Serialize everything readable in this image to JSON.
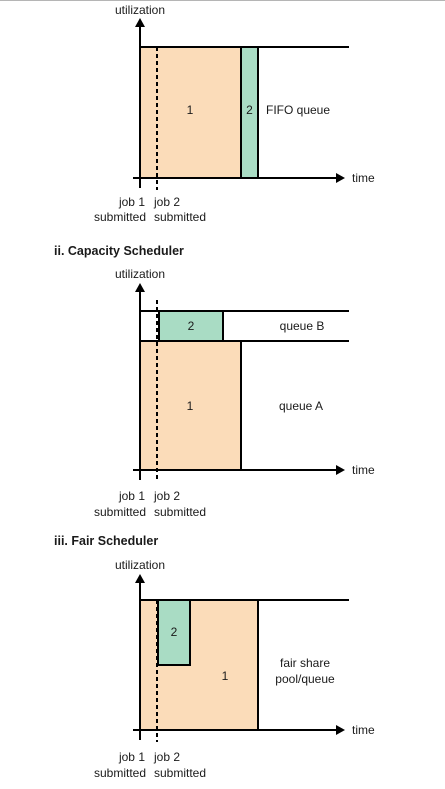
{
  "colors": {
    "job1_fill": "#fbdcb9",
    "job2_fill": "#a9dcc4",
    "line": "#000000"
  },
  "axis": {
    "y_label": "utilization",
    "x_label": "time",
    "job1_label": "job 1",
    "job2_label": "job 2",
    "submitted_label": "submitted"
  },
  "fifo": {
    "title": "",
    "job1": "1",
    "job2": "2",
    "queue_label": "FIFO queue"
  },
  "capacity": {
    "title": "ii. Capacity Scheduler",
    "job2": "2",
    "job1": "1",
    "queue_b": "queue B",
    "queue_a": "queue A"
  },
  "fair": {
    "title": "iii. Fair Scheduler",
    "job2": "2",
    "job1": "1",
    "pool_line1": "fair share",
    "pool_line2": "pool/queue"
  }
}
